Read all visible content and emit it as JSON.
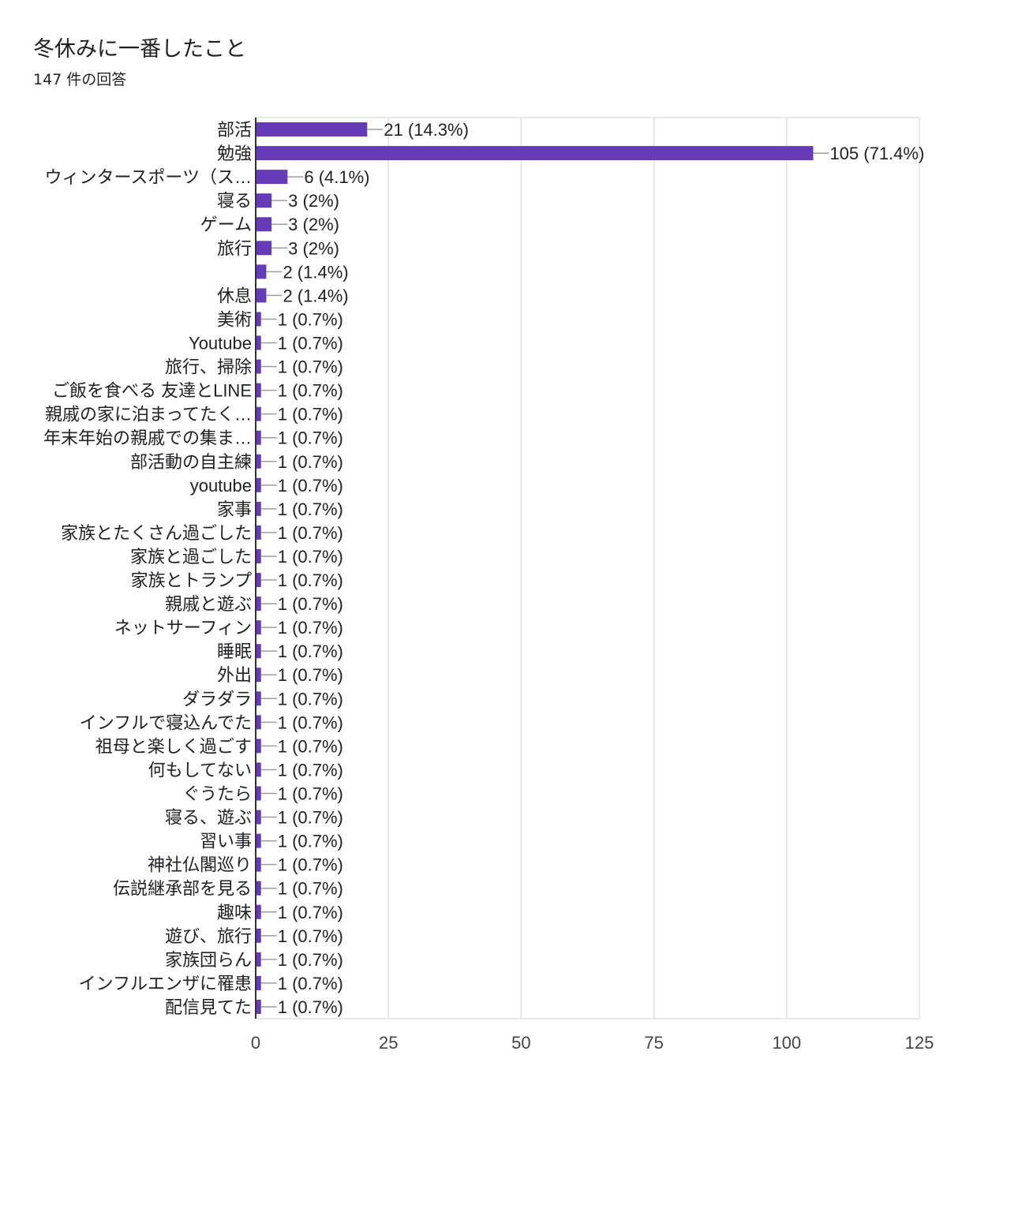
{
  "title": "冬休みに一番したこと",
  "subtitle": "147 件の回答",
  "chart_data": {
    "type": "bar",
    "orientation": "horizontal",
    "title": "冬休みに一番したこと",
    "subtitle": "147 件の回答",
    "bar_color": "#673ab7",
    "xlim": [
      0,
      125
    ],
    "x_ticks": [
      "0",
      "25",
      "50",
      "75",
      "100",
      "125"
    ],
    "grid": true,
    "categories": [
      "部活",
      "勉強",
      "ウィンタースポーツ（ス…",
      "寝る",
      "ゲーム",
      "旅行",
      "",
      "休息",
      "美術",
      "Youtube",
      "旅行、掃除",
      "ご飯を食べる 友達とLINE",
      "親戚の家に泊まってたく…",
      "年末年始の親戚での集ま…",
      "部活動の自主練",
      "youtube",
      "家事",
      "家族とたくさん過ごした",
      "家族と過ごした",
      "家族とトランプ",
      "親戚と遊ぶ",
      "ネットサーフィン",
      "睡眠",
      "外出",
      "ダラダラ",
      "インフルで寝込んでた",
      "祖母と楽しく過ごす",
      "何もしてない",
      "ぐうたら",
      "寝る、遊ぶ",
      "習い事",
      "神社仏閣巡り",
      "伝説継承部を見る",
      "趣味",
      "遊び、旅行",
      "家族団らん",
      "インフルエンザに罹患",
      "配信見てた"
    ],
    "values": [
      21,
      105,
      6,
      3,
      3,
      3,
      2,
      2,
      1,
      1,
      1,
      1,
      1,
      1,
      1,
      1,
      1,
      1,
      1,
      1,
      1,
      1,
      1,
      1,
      1,
      1,
      1,
      1,
      1,
      1,
      1,
      1,
      1,
      1,
      1,
      1,
      1,
      1
    ],
    "data_labels": [
      "21 (14.3%)",
      "105 (71.4%)",
      "6 (4.1%)",
      "3 (2%)",
      "3 (2%)",
      "3 (2%)",
      "2 (1.4%)",
      "2 (1.4%)",
      "1 (0.7%)",
      "1 (0.7%)",
      "1 (0.7%)",
      "1 (0.7%)",
      "1 (0.7%)",
      "1 (0.7%)",
      "1 (0.7%)",
      "1 (0.7%)",
      "1 (0.7%)",
      "1 (0.7%)",
      "1 (0.7%)",
      "1 (0.7%)",
      "1 (0.7%)",
      "1 (0.7%)",
      "1 (0.7%)",
      "1 (0.7%)",
      "1 (0.7%)",
      "1 (0.7%)",
      "1 (0.7%)",
      "1 (0.7%)",
      "1 (0.7%)",
      "1 (0.7%)",
      "1 (0.7%)",
      "1 (0.7%)",
      "1 (0.7%)",
      "1 (0.7%)",
      "1 (0.7%)",
      "1 (0.7%)",
      "1 (0.7%)",
      "1 (0.7%)"
    ]
  }
}
